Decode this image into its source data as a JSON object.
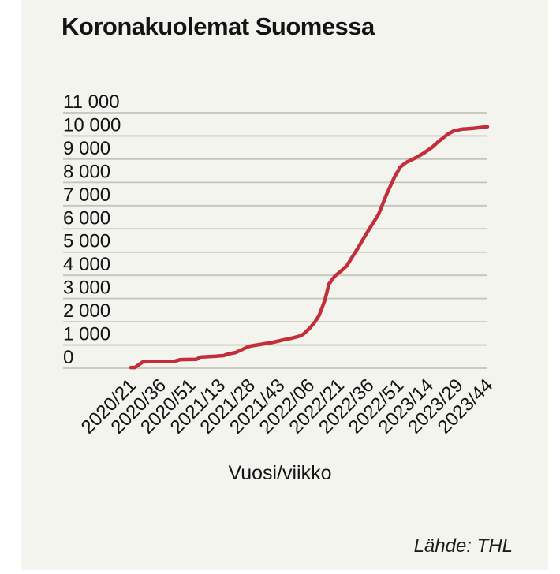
{
  "colors": {
    "background": "#f4f4ee",
    "outer_background": "#ffffff",
    "gridline": "#c5c4bc",
    "text": "#141414",
    "line": "#c22f3a"
  },
  "chart_data": {
    "type": "line",
    "title": "Koronakuolemat Suomessa",
    "xlabel": "Vuosi/viikko",
    "ylabel": "",
    "source": "Lähde: THL",
    "ylim": [
      0,
      11000
    ],
    "x_domain_weeks": [
      0,
      180
    ],
    "grid": "horizontal-only",
    "legend": "none",
    "y_ticks": [
      {
        "label": "11 000",
        "value": 11000
      },
      {
        "label": "10 000",
        "value": 10000
      },
      {
        "label": "9 000",
        "value": 9000
      },
      {
        "label": "8 000",
        "value": 8000
      },
      {
        "label": "7 000",
        "value": 7000
      },
      {
        "label": "6 000",
        "value": 6000
      },
      {
        "label": "5 000",
        "value": 5000
      },
      {
        "label": "4 000",
        "value": 4000
      },
      {
        "label": "3 000",
        "value": 3000
      },
      {
        "label": "2 000",
        "value": 2000
      },
      {
        "label": "1 000",
        "value": 1000
      },
      {
        "label": "0",
        "value": 0
      }
    ],
    "x_ticks": [
      {
        "label": "2020/21",
        "week": 0
      },
      {
        "label": "2020/36",
        "week": 15
      },
      {
        "label": "2020/51",
        "week": 30
      },
      {
        "label": "2021/13",
        "week": 45
      },
      {
        "label": "2021/28",
        "week": 60
      },
      {
        "label": "2021/43",
        "week": 75
      },
      {
        "label": "2022/06",
        "week": 90
      },
      {
        "label": "2022/21",
        "week": 105
      },
      {
        "label": "2022/36",
        "week": 120
      },
      {
        "label": "2022/51",
        "week": 135
      },
      {
        "label": "2023/14",
        "week": 150
      },
      {
        "label": "2023/29",
        "week": 165
      },
      {
        "label": "2023/44",
        "week": 180
      }
    ],
    "series": [
      {
        "color": "#c22f3a",
        "points": [
          [
            0,
            30
          ],
          [
            2,
            30
          ],
          [
            4,
            150
          ],
          [
            6,
            270
          ],
          [
            12,
            290
          ],
          [
            22,
            300
          ],
          [
            25,
            370
          ],
          [
            33,
            380
          ],
          [
            35,
            480
          ],
          [
            43,
            520
          ],
          [
            47,
            545
          ],
          [
            49,
            610
          ],
          [
            53,
            680
          ],
          [
            58,
            880
          ],
          [
            60,
            950
          ],
          [
            65,
            1020
          ],
          [
            72,
            1120
          ],
          [
            77,
            1220
          ],
          [
            81,
            1290
          ],
          [
            85,
            1380
          ],
          [
            87,
            1460
          ],
          [
            90,
            1700
          ],
          [
            93,
            2000
          ],
          [
            95,
            2270
          ],
          [
            98,
            2950
          ],
          [
            100,
            3630
          ],
          [
            103,
            3970
          ],
          [
            106,
            4180
          ],
          [
            109,
            4410
          ],
          [
            112,
            4820
          ],
          [
            115,
            5230
          ],
          [
            118,
            5670
          ],
          [
            121,
            6080
          ],
          [
            125,
            6620
          ],
          [
            129,
            7470
          ],
          [
            133,
            8220
          ],
          [
            136,
            8660
          ],
          [
            139,
            8860
          ],
          [
            144,
            9070
          ],
          [
            148,
            9270
          ],
          [
            152,
            9510
          ],
          [
            156,
            9810
          ],
          [
            160,
            10080
          ],
          [
            163,
            10220
          ],
          [
            167,
            10290
          ],
          [
            173,
            10330
          ],
          [
            180,
            10400
          ]
        ]
      }
    ]
  }
}
